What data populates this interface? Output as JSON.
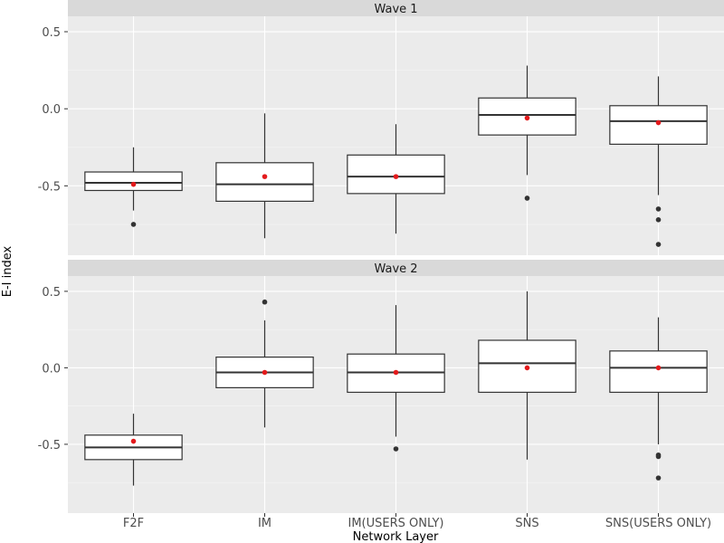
{
  "chart_data": {
    "type": "boxplot",
    "xlabel": "Network Layer",
    "ylabel": "E-I index",
    "categories": [
      "F2F",
      "IM",
      "IM(USERS ONLY)",
      "SNS",
      "SNS(USERS ONLY)"
    ],
    "ylim": [
      -0.95,
      0.6
    ],
    "yticks": [
      -0.5,
      0.0,
      0.5
    ],
    "ytick_labels": [
      "-0.5",
      "0.0",
      "0.5"
    ],
    "panels": [
      {
        "title": "Wave 1",
        "boxes": [
          {
            "category": "F2F",
            "q1": -0.53,
            "median": -0.48,
            "q3": -0.41,
            "whisker_low": -0.66,
            "whisker_high": -0.25,
            "mean": -0.49,
            "outliers": [
              -0.75
            ]
          },
          {
            "category": "IM",
            "q1": -0.6,
            "median": -0.49,
            "q3": -0.35,
            "whisker_low": -0.84,
            "whisker_high": -0.03,
            "mean": -0.44,
            "outliers": []
          },
          {
            "category": "IM(USERS ONLY)",
            "q1": -0.55,
            "median": -0.44,
            "q3": -0.3,
            "whisker_low": -0.81,
            "whisker_high": -0.1,
            "mean": -0.44,
            "outliers": []
          },
          {
            "category": "SNS",
            "q1": -0.17,
            "median": -0.04,
            "q3": 0.07,
            "whisker_low": -0.43,
            "whisker_high": 0.28,
            "mean": -0.06,
            "outliers": [
              -0.58
            ]
          },
          {
            "category": "SNS(USERS ONLY)",
            "q1": -0.23,
            "median": -0.08,
            "q3": 0.02,
            "whisker_low": -0.56,
            "whisker_high": 0.21,
            "mean": -0.09,
            "outliers": [
              -0.65,
              -0.72,
              -0.88
            ]
          }
        ]
      },
      {
        "title": "Wave 2",
        "boxes": [
          {
            "category": "F2F",
            "q1": -0.6,
            "median": -0.52,
            "q3": -0.44,
            "whisker_low": -0.77,
            "whisker_high": -0.3,
            "mean": -0.48,
            "outliers": []
          },
          {
            "category": "IM",
            "q1": -0.13,
            "median": -0.03,
            "q3": 0.07,
            "whisker_low": -0.39,
            "whisker_high": 0.31,
            "mean": -0.03,
            "outliers": [
              0.43
            ]
          },
          {
            "category": "IM(USERS ONLY)",
            "q1": -0.16,
            "median": -0.03,
            "q3": 0.09,
            "whisker_low": -0.45,
            "whisker_high": 0.41,
            "mean": -0.03,
            "outliers": [
              -0.53
            ]
          },
          {
            "category": "SNS",
            "q1": -0.16,
            "median": 0.03,
            "q3": 0.18,
            "whisker_low": -0.6,
            "whisker_high": 0.5,
            "mean": 0.0,
            "outliers": []
          },
          {
            "category": "SNS(USERS ONLY)",
            "q1": -0.16,
            "median": 0.0,
            "q3": 0.11,
            "whisker_low": -0.5,
            "whisker_high": 0.33,
            "mean": 0.0,
            "outliers": [
              -0.57,
              -0.58,
              -0.72
            ]
          }
        ]
      }
    ],
    "colors": {
      "box_fill": "#ffffff",
      "box_stroke": "#333333",
      "mean_point": "#e31a1c",
      "panel_bg": "#ebebeb",
      "strip_bg": "#d9d9d9"
    },
    "grid": true,
    "legend": "none"
  }
}
